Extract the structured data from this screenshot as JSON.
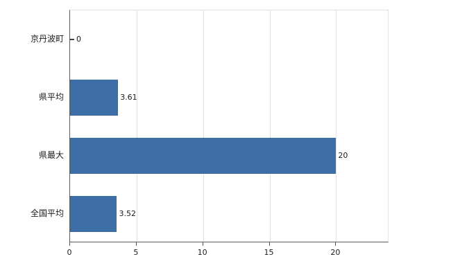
{
  "chart_data": {
    "type": "bar",
    "orientation": "horizontal",
    "title": "",
    "xlabel": "",
    "ylabel": "",
    "categories": [
      "京丹波町",
      "県平均",
      "県最大",
      "全国平均"
    ],
    "values": [
      0,
      3.61,
      20,
      3.52
    ],
    "value_labels": [
      "0",
      "3.61",
      "20",
      "3.52"
    ],
    "xlim": [
      0,
      24
    ],
    "xticks": [
      0,
      5,
      10,
      15,
      20
    ],
    "xtick_labels": [
      "0",
      "5",
      "10",
      "15",
      "20"
    ],
    "grid": true,
    "legend_position": "none",
    "bar_color": "#3d6da5",
    "axis_color": "#595959",
    "grid_color": "#e2e2e2",
    "background_color": "#ffffff"
  }
}
